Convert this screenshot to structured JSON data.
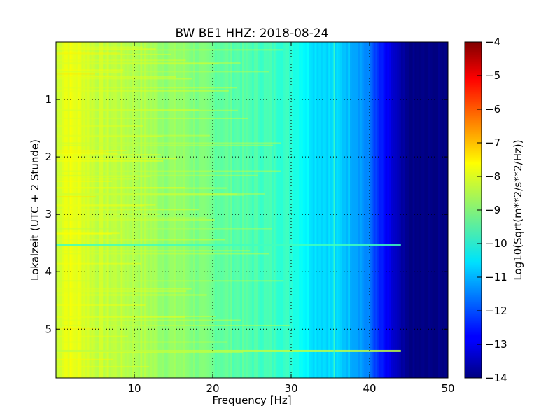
{
  "chart_data": {
    "type": "heatmap",
    "title": "BW BE1 HHZ: 2018-08-24",
    "xlabel": "Frequency [Hz]",
    "ylabel": "Lokalzeit (UTC + 2 Stunde)",
    "xlim": [
      0,
      50
    ],
    "ylim": [
      5.85,
      0
    ],
    "xticks": [
      10,
      20,
      30,
      40,
      50
    ],
    "yticks": [
      1,
      2,
      3,
      4,
      5
    ],
    "grid": true,
    "colormap": "jet",
    "colorbar": {
      "label": "Log10(Sqrt(m**2/s**2/Hz))",
      "range": [
        -14,
        -4
      ],
      "ticks": [
        -4,
        -5,
        -6,
        -7,
        -8,
        -9,
        -10,
        -11,
        -12,
        -13,
        -14
      ]
    },
    "spectral_profile": {
      "frequency_hz": [
        0,
        1,
        3,
        5,
        8,
        10,
        12,
        14,
        16,
        18,
        20,
        22,
        25,
        27,
        29,
        30,
        31,
        32,
        33,
        35,
        37,
        38,
        39,
        40,
        41,
        42,
        43,
        44,
        45,
        50
      ],
      "log10_amplitude": [
        -8.4,
        -7.9,
        -8.0,
        -8.3,
        -8.4,
        -8.5,
        -8.6,
        -8.8,
        -8.8,
        -9.0,
        -9.2,
        -9.3,
        -9.5,
        -9.6,
        -9.7,
        -9.8,
        -10.0,
        -10.3,
        -10.5,
        -10.6,
        -10.8,
        -11.0,
        -11.2,
        -11.6,
        -12.3,
        -12.8,
        -13.2,
        -13.7,
        -14.0,
        -14.0
      ]
    },
    "horizontal_features": [
      {
        "time_h": 3.54,
        "log10_amplitude": -9.6,
        "fmax_hz": 44
      },
      {
        "time_h": 5.38,
        "log10_amplitude": -8.4,
        "fmax_hz": 44
      }
    ],
    "vertical_features": [
      {
        "frequency_hz": 35.5,
        "log10_amplitude": -9.6
      }
    ],
    "series": [
      {
        "values": [
          -8.4,
          -7.9,
          -8.0,
          -8.3,
          -8.4,
          -8.5,
          -8.6,
          -8.8,
          -8.8,
          -9.0,
          -9.2,
          -9.3,
          -9.5,
          -9.6,
          -9.7,
          -9.8,
          -10.0,
          -10.3,
          -10.5,
          -10.6,
          -10.8,
          -11.0,
          -11.2,
          -11.6,
          -12.3,
          -12.8,
          -13.2,
          -13.7,
          -14.0,
          -14.0
        ]
      }
    ]
  }
}
